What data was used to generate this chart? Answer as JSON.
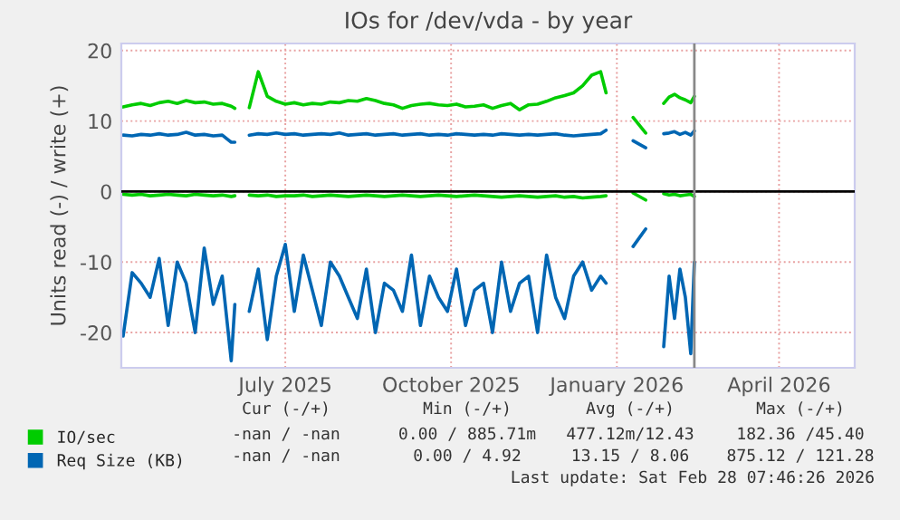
{
  "chart_data": {
    "type": "line",
    "title": "IOs for /dev/vda - by year",
    "ylabel": "Units read (-) / write (+)",
    "x": [
      "2025-04-17",
      "2025-04-22",
      "2025-04-27",
      "2025-05-02",
      "2025-05-07",
      "2025-05-12",
      "2025-05-17",
      "2025-05-22",
      "2025-05-27",
      "2025-06-01",
      "2025-06-06",
      "2025-06-11",
      "2025-06-16",
      "2025-06-18",
      "2025-06-22",
      "2025-06-26",
      "2025-07-01",
      "2025-07-06",
      "2025-07-11",
      "2025-07-16",
      "2025-07-21",
      "2025-07-26",
      "2025-07-31",
      "2025-08-05",
      "2025-08-10",
      "2025-08-15",
      "2025-08-20",
      "2025-08-25",
      "2025-08-30",
      "2025-09-04",
      "2025-09-09",
      "2025-09-14",
      "2025-09-19",
      "2025-09-24",
      "2025-09-29",
      "2025-10-04",
      "2025-10-09",
      "2025-10-14",
      "2025-10-19",
      "2025-10-24",
      "2025-10-29",
      "2025-11-03",
      "2025-11-08",
      "2025-11-13",
      "2025-11-18",
      "2025-11-23",
      "2025-11-28",
      "2025-12-03",
      "2025-12-08",
      "2025-12-13",
      "2025-12-18",
      "2025-12-23",
      "2025-12-28",
      "2026-01-02",
      "2026-01-07",
      "2026-01-10",
      "2026-01-20",
      "2026-01-25",
      "2026-02-01",
      "2026-02-05",
      "2026-02-11",
      "2026-02-14",
      "2026-02-17",
      "2026-02-20",
      "2026-02-23",
      "2026-02-26",
      "2026-02-28"
    ],
    "series": [
      {
        "name": "IO/sec",
        "color": "#00cc00",
        "values": [
          12,
          12.3,
          12.5,
          12.2,
          12.6,
          12.8,
          12.5,
          12.9,
          12.6,
          12.7,
          12.4,
          12.5,
          12.1,
          11.8,
          null,
          11.9,
          17,
          13.5,
          12.8,
          12.4,
          12.6,
          12.3,
          12.5,
          12.4,
          12.7,
          12.6,
          12.9,
          12.8,
          13.2,
          12.9,
          12.5,
          12.3,
          11.8,
          12.2,
          12.4,
          12.5,
          12.3,
          12.2,
          12.4,
          12,
          12.1,
          12.3,
          11.8,
          12.2,
          12.5,
          11.6,
          12.3,
          12.4,
          12.8,
          13.3,
          13.6,
          14,
          15,
          16.5,
          17,
          14,
          null,
          10.5,
          8.3,
          null,
          12.5,
          13.4,
          13.8,
          13.3,
          13,
          12.6,
          13.5
        ]
      },
      {
        "color": "#00cc00",
        "values": [
          -0.4,
          -0.5,
          -0.4,
          -0.6,
          -0.5,
          -0.4,
          -0.5,
          -0.6,
          -0.4,
          -0.5,
          -0.6,
          -0.5,
          -0.7,
          -0.6,
          null,
          -0.5,
          -0.6,
          -0.5,
          -0.7,
          -0.6,
          -0.6,
          -0.5,
          -0.7,
          -0.6,
          -0.5,
          -0.6,
          -0.7,
          -0.6,
          -0.5,
          -0.6,
          -0.7,
          -0.6,
          -0.5,
          -0.6,
          -0.7,
          -0.6,
          -0.5,
          -0.6,
          -0.7,
          -0.6,
          -0.5,
          -0.6,
          -0.7,
          -0.8,
          -0.7,
          -0.6,
          -0.7,
          -0.8,
          -0.7,
          -0.6,
          -0.8,
          -0.7,
          -0.9,
          -0.8,
          -0.7,
          -0.6,
          null,
          -0.2,
          -1.2,
          null,
          -0.3,
          -0.5,
          -0.4,
          -0.6,
          -0.5,
          -0.4,
          -0.7
        ]
      },
      {
        "name": "Req Size (KB)",
        "color": "#0066b3",
        "values": [
          8,
          7.9,
          8.1,
          8,
          8.2,
          8,
          8.1,
          8.4,
          8,
          8.1,
          7.9,
          8,
          7,
          7,
          null,
          8,
          8.2,
          8.1,
          8.3,
          8.1,
          8.2,
          8,
          8.1,
          8.2,
          8.1,
          8.3,
          8,
          8.1,
          8.2,
          8,
          8.1,
          8.2,
          8,
          8.1,
          8.2,
          8,
          8.1,
          8,
          8.2,
          8.1,
          8,
          8.1,
          8,
          8.2,
          8.1,
          8,
          8.1,
          8,
          8.1,
          8.2,
          8,
          7.9,
          8,
          8.1,
          8.2,
          8.7,
          null,
          7.2,
          6.2,
          null,
          8.2,
          8.3,
          8.5,
          8.1,
          8.4,
          8,
          8.6
        ]
      },
      {
        "color": "#0066b3",
        "values": [
          -20.5,
          -11.5,
          -13,
          -15,
          -9.5,
          -19,
          -10,
          -13,
          -20,
          -8,
          -16,
          -12,
          -24,
          -16,
          null,
          -17,
          -11,
          -21,
          -12,
          -7.5,
          -17,
          -9,
          -14,
          -19,
          -10,
          -12,
          -15,
          -18,
          -11,
          -20,
          -13,
          -14,
          -17,
          -9,
          -19,
          -12,
          -15,
          -17,
          -11,
          -19,
          -14,
          -13,
          -20,
          -10,
          -17,
          -13,
          -12,
          -20,
          -9,
          -15,
          -18,
          -12,
          -10,
          -14,
          -12,
          -13,
          null,
          -7.8,
          -5.3,
          null,
          -22,
          -12,
          -18,
          -11,
          -15,
          -23,
          -10
        ]
      }
    ],
    "xlim": [
      "2025-04-16",
      "2026-05-28"
    ],
    "xticks": [
      {
        "value": "2025-07-16",
        "label": "July 2025"
      },
      {
        "value": "2025-10-16",
        "label": "October 2025"
      },
      {
        "value": "2026-01-16",
        "label": "January 2026"
      },
      {
        "value": "2026-04-16",
        "label": "April 2026"
      }
    ],
    "ylim": [
      -25,
      21
    ],
    "yticks": [
      -20,
      -10,
      0,
      10,
      20
    ],
    "ref_lines": [
      {
        "axis": "y",
        "value": 0,
        "color": "#000000"
      },
      {
        "axis": "x",
        "value": "2026-02-28",
        "color": "#888888"
      }
    ],
    "grid": true,
    "legend": "bottom",
    "annotations": [
      "Cur (-/+)",
      "Min (-/+)",
      "Avg (-/+)",
      "Max (-/+)",
      "-nan / -nan",
      "0.00 / 885.71m",
      "477.12m/12.43",
      "182.36 /45.40",
      "-nan / -nan",
      "0.00 / 4.92",
      "13.15 / 8.06",
      "875.12 / 121.28",
      "Last update: Sat Feb 28 07:46:26 2026"
    ]
  }
}
